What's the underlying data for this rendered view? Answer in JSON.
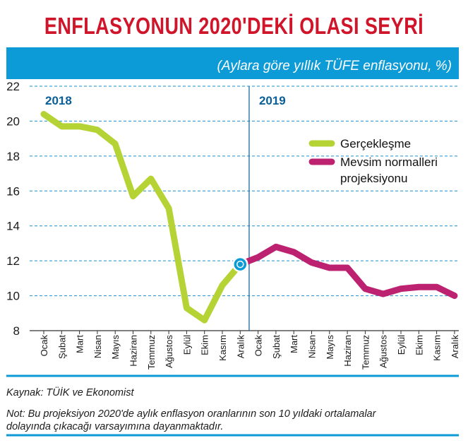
{
  "title": "ENFLASYONUN 2020'DEKİ OLASI SEYRİ",
  "subtitle": "(Aylara göre yıllık TÜFE enflasyonu, %)",
  "source": "Kaynak: TÜİK ve Ekonomist",
  "note_line1": "Not: Bu projeksiyon 2020'de aylık enflasyon oranlarının son 10 yıldaki ortalamalar",
  "note_line2": "dolayında çıkacağı varsayımına dayanmaktadır.",
  "colors": {
    "title": "#d0152b",
    "band": "#0d9bd7",
    "actual": "#b5d334",
    "projection": "#bd2271",
    "grid": "#1a8fcf",
    "year_label": "#0a5f97",
    "divider": "#0a5f97"
  },
  "chart_data": {
    "type": "line",
    "ylim": [
      8,
      22
    ],
    "yticks": [
      "8",
      "10",
      "12",
      "14",
      "16",
      "18",
      "20",
      "22"
    ],
    "categories": [
      "Ocak",
      "Şubat",
      "Mart",
      "Nisan",
      "Mayıs",
      "Haziran",
      "Temmuz",
      "Ağustos",
      "Eylül",
      "Ekim",
      "Kasım",
      "Aralık",
      "Ocak",
      "Şubat",
      "Mart",
      "Nisan",
      "Mayıs",
      "Haziran",
      "Temmuz",
      "Ağustos",
      "Eylül",
      "Ekim",
      "Kasım",
      "Aralık"
    ],
    "year_labels": [
      {
        "label": "2018",
        "start_index": 0
      },
      {
        "label": "2019",
        "start_index": 12
      }
    ],
    "series": [
      {
        "name": "Gerçekleşme",
        "color": "#b5d334",
        "values": [
          20.4,
          19.7,
          19.7,
          19.5,
          18.7,
          15.7,
          16.7,
          15.0,
          9.3,
          8.6,
          10.6,
          11.8,
          null,
          null,
          null,
          null,
          null,
          null,
          null,
          null,
          null,
          null,
          null,
          null
        ]
      },
      {
        "name": "Mevsim normalleri projeksiyonu",
        "color": "#bd2271",
        "values": [
          null,
          null,
          null,
          null,
          null,
          null,
          null,
          null,
          null,
          null,
          null,
          11.8,
          12.2,
          12.8,
          12.5,
          11.9,
          11.6,
          11.6,
          10.4,
          10.1,
          10.4,
          10.5,
          10.5,
          10.0
        ]
      }
    ],
    "legend": [
      {
        "label_lines": [
          "Gerçekleşme"
        ],
        "color": "#b5d334"
      },
      {
        "label_lines": [
          "Mevsim normalleri",
          "projeksiyonu"
        ],
        "color": "#bd2271"
      }
    ],
    "legend_placement": "top-right",
    "grid": true,
    "marker": {
      "index": 11,
      "value": 11.8
    }
  }
}
